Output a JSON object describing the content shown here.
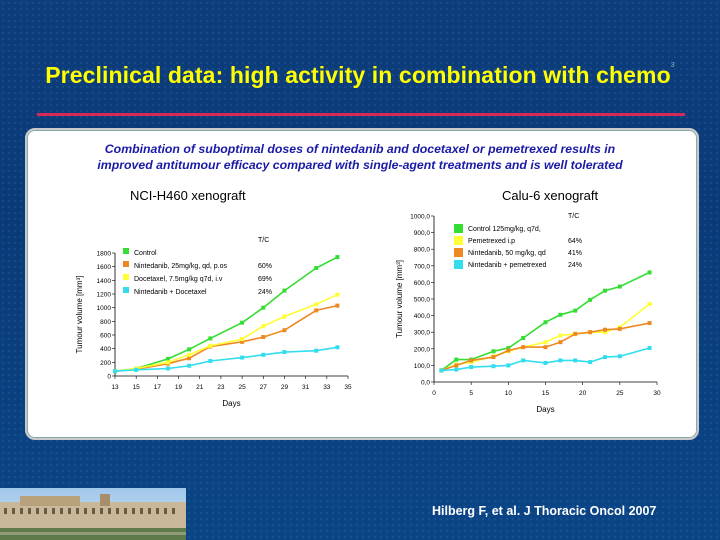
{
  "slide": {
    "title": "Preclinical data: high activity in combination with chemo",
    "title_sup": "3",
    "subtitle_line1": "Combination of suboptimal doses of nintedanib and docetaxel or pemetrexed results in",
    "subtitle_line2": "improved antitumour efficacy compared with single-agent treatments and is well tolerated",
    "citation": "Hilberg F, et al. J Thoracic Oncol 2007"
  },
  "colors": {
    "title": "#ffff00",
    "subtitle": "#1a1aa8",
    "rule": "#d62a5a",
    "control": "#33dd33",
    "nintedanib": "#ee8822",
    "chemo": "#ffff33",
    "combo": "#33ddee"
  },
  "chart_data": [
    {
      "type": "line",
      "title": "NCI-H460 xenograft",
      "xlabel": "Days",
      "ylabel": "Tumour volume [mm³]",
      "xlim": [
        13,
        35
      ],
      "ylim": [
        0,
        1800
      ],
      "xticks": [
        13,
        15,
        17,
        19,
        21,
        23,
        25,
        27,
        29,
        31,
        33,
        35
      ],
      "yticks": [
        0,
        200,
        400,
        600,
        800,
        1000,
        1200,
        1400,
        1600,
        1800
      ],
      "legend_header": "T/C",
      "legend_position": "top-left",
      "series": [
        {
          "name": "Control",
          "tc": "",
          "color_key": "control",
          "x": [
            13,
            15,
            18,
            20,
            22,
            25,
            27,
            29,
            32,
            34
          ],
          "y": [
            70,
            110,
            250,
            390,
            550,
            780,
            1000,
            1250,
            1580,
            1740
          ]
        },
        {
          "name": "Nintedanib, 25mg/kg, qd, p.os",
          "tc": "60%",
          "color_key": "nintedanib",
          "x": [
            13,
            15,
            18,
            20,
            22,
            25,
            27,
            29,
            32,
            34
          ],
          "y": [
            70,
            100,
            180,
            260,
            430,
            500,
            570,
            670,
            960,
            1030
          ]
        },
        {
          "name": "Docetaxel, 7.5mg/kg q7d, i.v",
          "tc": "69%",
          "color_key": "chemo",
          "x": [
            13,
            15,
            18,
            20,
            22,
            25,
            27,
            29,
            32,
            34
          ],
          "y": [
            70,
            110,
            200,
            310,
            440,
            540,
            730,
            870,
            1050,
            1190
          ]
        },
        {
          "name": "Nintedanib + Docetaxel",
          "tc": "24%",
          "color_key": "combo",
          "x": [
            13,
            15,
            18,
            20,
            22,
            25,
            27,
            29,
            32,
            34
          ],
          "y": [
            70,
            90,
            110,
            150,
            220,
            270,
            310,
            350,
            370,
            420
          ]
        }
      ]
    },
    {
      "type": "line",
      "title": "Calu-6 xenograft",
      "xlabel": "Days",
      "ylabel": "Tumour volume [mm³]",
      "xlim": [
        0,
        30
      ],
      "ylim": [
        0,
        1000
      ],
      "xticks": [
        0,
        5,
        10,
        15,
        20,
        25,
        30
      ],
      "yticks": [
        0,
        100,
        200,
        300,
        400,
        500,
        600,
        700,
        800,
        900,
        1000
      ],
      "ytick_labels": [
        "0,0",
        "100,0",
        "200,0",
        "300,0",
        "400,0",
        "500,0",
        "600,0",
        "700,0",
        "800,0",
        "900,0",
        "1000,0"
      ],
      "legend_header": "T/C",
      "legend_position": "top-left",
      "series": [
        {
          "name": "Control 125mg/kg, q7d,",
          "tc": "",
          "color_key": "control",
          "x": [
            1,
            3,
            5,
            8,
            10,
            12,
            15,
            17,
            19,
            21,
            23,
            25,
            29
          ],
          "y": [
            70,
            135,
            135,
            185,
            205,
            265,
            360,
            405,
            430,
            495,
            550,
            575,
            660
          ]
        },
        {
          "name": "Pemetrexed i.p",
          "tc": "64%",
          "color_key": "chemo",
          "x": [
            1,
            3,
            5,
            8,
            10,
            12,
            15,
            17,
            19,
            21,
            23,
            25,
            29
          ],
          "y": [
            70,
            105,
            120,
            155,
            185,
            210,
            240,
            280,
            290,
            300,
            300,
            330,
            470
          ]
        },
        {
          "name": "Nintedanib, 50 mg/kg, qd",
          "tc": "41%",
          "color_key": "nintedanib",
          "x": [
            1,
            3,
            5,
            8,
            10,
            12,
            15,
            17,
            19,
            21,
            23,
            25,
            29
          ],
          "y": [
            70,
            100,
            130,
            150,
            190,
            210,
            210,
            240,
            290,
            300,
            315,
            320,
            355
          ]
        },
        {
          "name": "Nintedanib + pemetrexed",
          "tc": "24%",
          "color_key": "combo",
          "x": [
            1,
            3,
            5,
            8,
            10,
            12,
            15,
            17,
            19,
            21,
            23,
            25,
            29
          ],
          "y": [
            70,
            75,
            90,
            95,
            100,
            130,
            115,
            130,
            130,
            120,
            150,
            155,
            205
          ]
        }
      ]
    }
  ]
}
